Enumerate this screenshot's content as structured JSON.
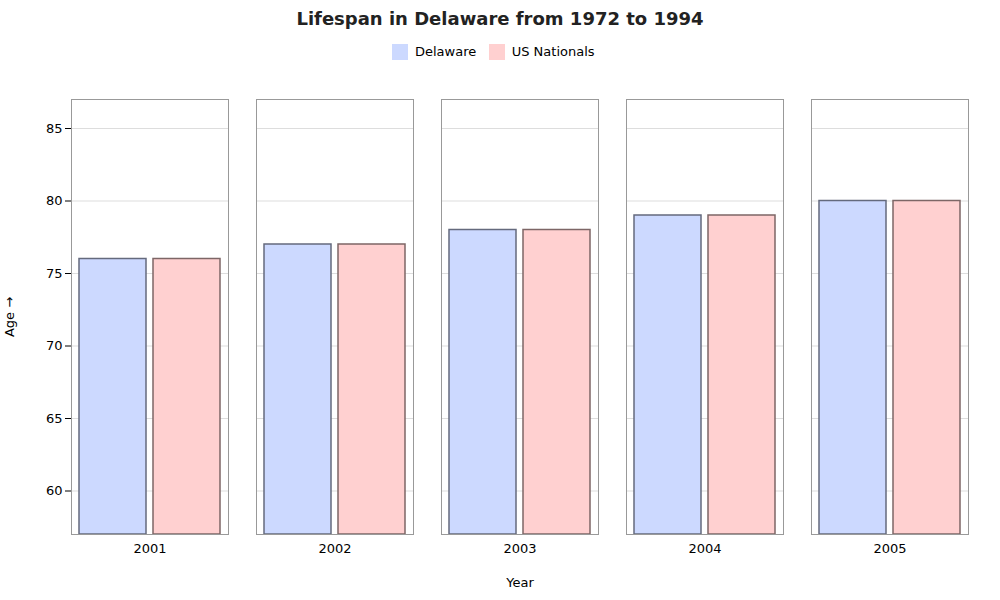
{
  "chart_data": {
    "type": "bar",
    "title": "Lifespan in Delaware from 1972 to 1994",
    "xlabel": "Year",
    "ylabel": "Age",
    "categories": [
      "2001",
      "2002",
      "2003",
      "2004",
      "2005"
    ],
    "series": [
      {
        "name": "Delaware",
        "color": "#ccd9ff",
        "values": [
          76,
          77,
          78,
          79,
          80
        ]
      },
      {
        "name": "US Nationals",
        "color": "#ffd0d0",
        "values": [
          76,
          77,
          78,
          79,
          80
        ]
      }
    ],
    "ylim": [
      57,
      87
    ],
    "yticks": [
      60,
      65,
      70,
      75,
      80,
      85
    ],
    "grid": true,
    "legend": "top"
  }
}
